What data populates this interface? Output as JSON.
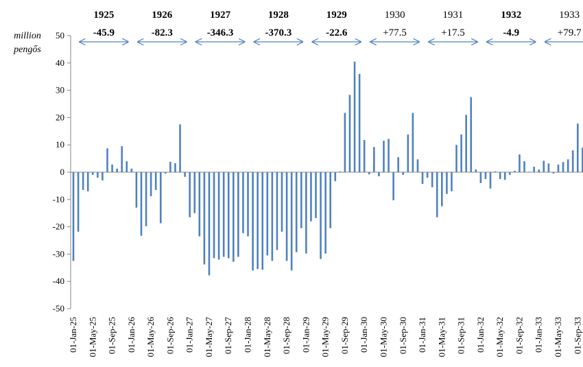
{
  "chart_data": {
    "type": "bar",
    "ylabel": [
      "million",
      "pengős"
    ],
    "color": "#4f81bd",
    "negative_annotation_color": "#ff0000",
    "positive_annotation_color": "#000000",
    "arrow_color": "#4f81bd",
    "ylim": [
      -50,
      50
    ],
    "yticks": [
      -50,
      -40,
      -30,
      -20,
      -10,
      0,
      10,
      20,
      30,
      40,
      50
    ],
    "annotations": [
      {
        "label": "1925",
        "value": -45.9
      },
      {
        "label": "1926",
        "value": -82.3
      },
      {
        "label": "1927",
        "value": -346.3
      },
      {
        "label": "1928",
        "value": -370.3
      },
      {
        "label": "1929",
        "value": -22.6
      },
      {
        "label": "1930",
        "value": 77.5,
        "value_label": "+77.5"
      },
      {
        "label": "1931",
        "value": 17.5,
        "value_label": "+17.5"
      },
      {
        "label": "1932",
        "value": -4.9
      },
      {
        "label": "1933",
        "value": 79.7,
        "value_label": "+79.7"
      }
    ],
    "categories": [
      "01-Jan-25",
      null,
      null,
      null,
      "01-May-25",
      null,
      null,
      null,
      "01-Sep-25",
      null,
      null,
      null,
      "01-Jan-26",
      null,
      null,
      null,
      "01-May-26",
      null,
      null,
      null,
      "01-Sep-26",
      null,
      null,
      null,
      "01-Jan-27",
      null,
      null,
      null,
      "01-May-27",
      null,
      null,
      null,
      "01-Sep-27",
      null,
      null,
      null,
      "01-Jan-28",
      null,
      null,
      null,
      "01-May-28",
      null,
      null,
      null,
      "01-Sep-28",
      null,
      null,
      null,
      "01-Jan-29",
      null,
      null,
      null,
      "01-May-29",
      null,
      null,
      null,
      "01-Sep-29",
      null,
      null,
      null,
      "01-Jan-30",
      null,
      null,
      null,
      "01-May-30",
      null,
      null,
      null,
      "01-Sep-30",
      null,
      null,
      null,
      "01-Jan-31",
      null,
      null,
      null,
      "01-May-31",
      null,
      null,
      null,
      "01-Sep-31",
      null,
      null,
      null,
      "01-Jan-32",
      null,
      null,
      null,
      "01-May-32",
      null,
      null,
      null,
      "01-Sep-32",
      null,
      null,
      null,
      "01-Jan-33",
      null,
      null,
      null,
      "01-May-33",
      null,
      null,
      null,
      "01-Sep-33",
      null
    ],
    "values": [
      -32.5,
      -21.8,
      -6.5,
      -7,
      -1,
      -2,
      -3,
      8.7,
      2.8,
      1.3,
      9.5,
      4,
      1.3,
      -13,
      -23.3,
      -19.8,
      -8.8,
      -6.5,
      -18.7,
      -0.5,
      3.8,
      3.3,
      17.5,
      -1.7,
      -16.5,
      -15,
      -23.5,
      -33.8,
      -37.8,
      -31.5,
      -32,
      -31,
      -31.5,
      -32.8,
      -31,
      -22.3,
      -23.5,
      -36,
      -35.5,
      -35.7,
      -30.5,
      -32.5,
      -28.5,
      -21.8,
      -32.5,
      -36,
      -29.3,
      -20.5,
      -29.8,
      -18,
      -16.8,
      -31.8,
      -29.8,
      -20.5,
      -3.3,
      0.3,
      21.7,
      28.3,
      40.5,
      36,
      11.8,
      -0.8,
      9.2,
      -1.5,
      11.5,
      12.2,
      -10.3,
      5.5,
      -1,
      13.8,
      21.7,
      4.7,
      -4.3,
      -2,
      -5.5,
      -16.5,
      -12.5,
      -8,
      -7,
      10,
      13.8,
      21,
      27.5,
      1,
      -4,
      -2.5,
      -6,
      0.3,
      -2.5,
      -2.8,
      -1,
      0.5,
      6.5,
      4,
      0.2,
      2,
      1,
      4.2,
      3.2,
      -0.5,
      2.8,
      3.7,
      4.7,
      8,
      17.8,
      9
    ]
  }
}
